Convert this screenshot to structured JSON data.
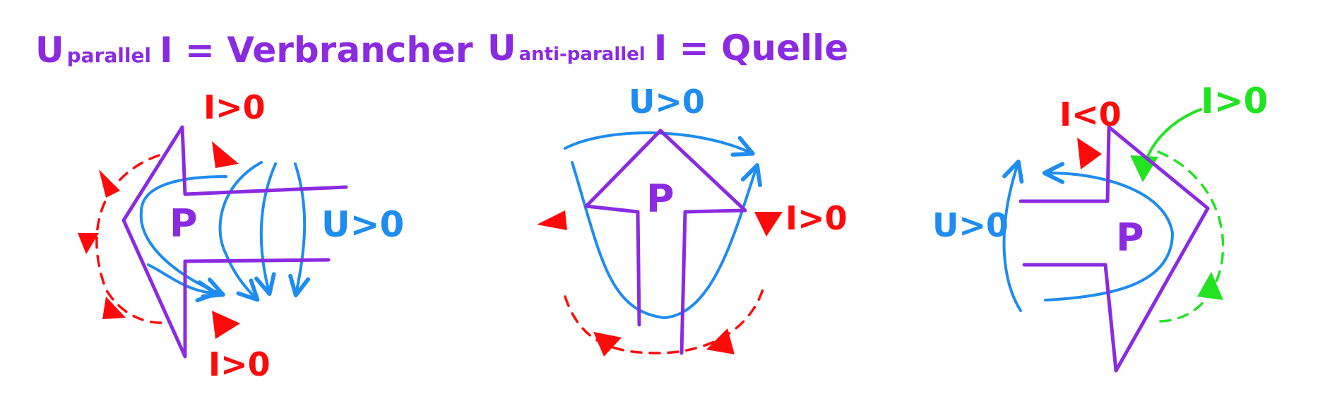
{
  "headings": {
    "left": {
      "u": "U",
      "sub": "parallel",
      "rest": "I = Verbrancher"
    },
    "right": {
      "u": "U",
      "sub": "anti-parallel",
      "rest": "I = Quelle"
    }
  },
  "figures": {
    "left": {
      "center": "P",
      "current_top": "I>0",
      "current_bottom": "I>0",
      "voltage": "U>0"
    },
    "middle": {
      "center": "P",
      "voltage": "U>0",
      "current": "I>0"
    },
    "right": {
      "center": "P",
      "current_top": "I<0",
      "current_green": "I>0",
      "voltage": "U>0"
    }
  },
  "colors": {
    "purple": "#8a2be2",
    "blue": "#1e8cf0",
    "red": "#ff0a0a",
    "green": "#22e322"
  }
}
